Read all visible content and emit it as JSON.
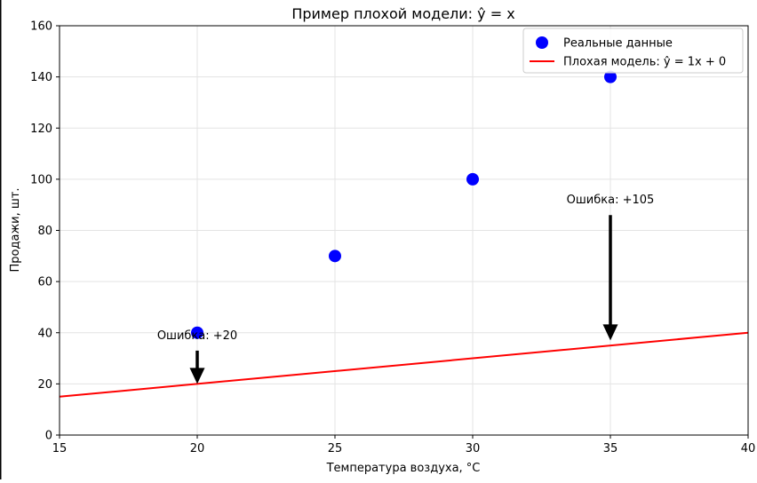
{
  "chart_data": {
    "type": "scatter",
    "title": "Пример плохой модели: ŷ = x",
    "xlabel": "Температура воздуха, °C",
    "ylabel": "Продажи, шт.",
    "xlim": [
      15,
      40
    ],
    "ylim": [
      0,
      160
    ],
    "xticks": [
      15,
      20,
      25,
      30,
      35,
      40
    ],
    "yticks": [
      0,
      20,
      40,
      60,
      80,
      100,
      120,
      140,
      160
    ],
    "grid": true,
    "legend_position": "top-right",
    "series": [
      {
        "name": "Реальные данные",
        "kind": "scatter",
        "color": "#0000ff",
        "x": [
          20,
          25,
          30,
          35
        ],
        "y": [
          40,
          70,
          100,
          140
        ]
      },
      {
        "name": "Плохая модель: ŷ = 1x + 0",
        "kind": "line",
        "color": "#ff0000",
        "x": [
          15,
          40
        ],
        "y": [
          15,
          40
        ]
      }
    ],
    "annotations": [
      {
        "text": "Ошибка: +20",
        "x": 20,
        "y_from": 33,
        "y_to": 20
      },
      {
        "text": "Ошибка: +105",
        "x": 35,
        "y_from": 86,
        "y_to": 37
      }
    ]
  }
}
